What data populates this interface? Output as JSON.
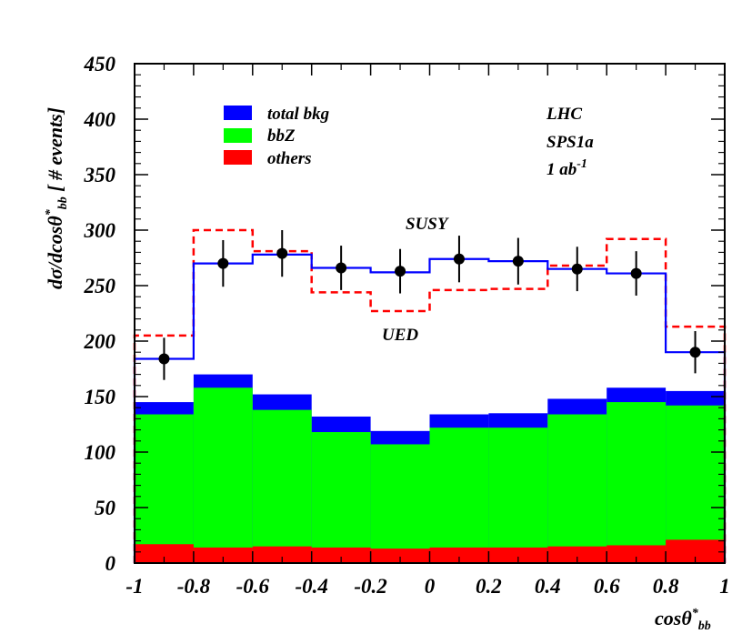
{
  "chart_data": {
    "type": "histogram",
    "x_bin_edges": [
      -1,
      -0.8,
      -0.6,
      -0.4,
      -0.2,
      0,
      0.2,
      0.4,
      0.6,
      0.8,
      1
    ],
    "xlim": [
      -1,
      1
    ],
    "ylim": [
      0,
      450
    ],
    "x_ticks": [
      "-1",
      "-0.8",
      "-0.6",
      "-0.4",
      "-0.2",
      "0",
      "0.2",
      "0.4",
      "0.6",
      "0.8",
      "1"
    ],
    "y_ticks": [
      "0",
      "50",
      "100",
      "150",
      "200",
      "250",
      "300",
      "350",
      "400",
      "450"
    ],
    "xlabel": {
      "main": "cosθ",
      "sup": "*",
      "sub": "bb"
    },
    "ylabel": {
      "pre": "dσ/dcosθ",
      "sup": "*",
      "sub": "bb",
      "post": " [ # events]"
    },
    "series": [
      {
        "name": "total bkg",
        "color": "#0000ff",
        "values": [
          145,
          170,
          152,
          132,
          119,
          134,
          135,
          148,
          158,
          155
        ]
      },
      {
        "name": "bbZ",
        "color": "#00ff00",
        "values": [
          134,
          158,
          138,
          118,
          107,
          122,
          122,
          134,
          145,
          142
        ]
      },
      {
        "name": "others",
        "color": "#ff0000",
        "values": [
          17,
          14,
          15,
          14,
          13,
          14,
          14,
          15,
          16,
          21
        ]
      },
      {
        "name": "SUSY",
        "color": "#0000ff",
        "values": [
          184,
          270,
          278,
          266,
          262,
          274,
          272,
          265,
          261,
          190
        ]
      },
      {
        "name": "UED",
        "color": "#ff0000",
        "values": [
          205,
          300,
          281,
          244,
          227,
          246,
          247,
          268,
          292,
          213
        ]
      }
    ],
    "points": {
      "x": [
        -0.9,
        -0.7,
        -0.5,
        -0.3,
        -0.1,
        0.1,
        0.3,
        0.5,
        0.7,
        0.9
      ],
      "y": [
        184,
        270,
        279,
        266,
        263,
        274,
        272,
        265,
        261,
        190
      ],
      "yerr": [
        19,
        21,
        21,
        20,
        20,
        21,
        21,
        20,
        20,
        19
      ]
    },
    "legend": [
      {
        "label": "total bkg",
        "color": "#0000ff"
      },
      {
        "label": "bbZ",
        "color": "#00ff00"
      },
      {
        "label": "others",
        "color": "#ff0000"
      }
    ],
    "annotations": {
      "experiment": "LHC",
      "scenario": "SPS1a",
      "lumi": {
        "main": "1 ab",
        "sup": "-1"
      },
      "susy": "SUSY",
      "ued": "UED"
    }
  }
}
